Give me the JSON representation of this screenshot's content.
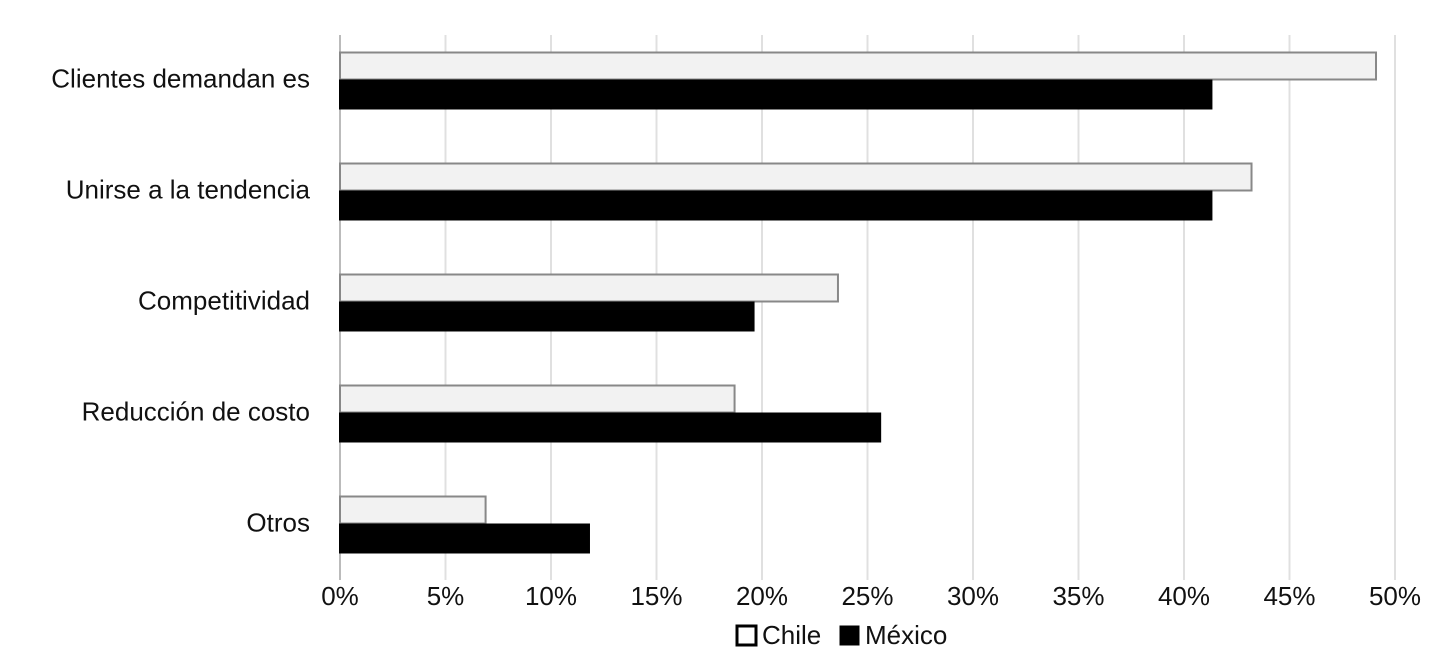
{
  "chart_data": {
    "type": "hbar",
    "categories": [
      "Clientes demandan es",
      "Unirse a la tendencia",
      "Competitividad",
      "Reducción de costo",
      "Otros"
    ],
    "series": [
      {
        "name": "Chile",
        "color": "#f2f2f2",
        "values": [
          49.1,
          43.2,
          23.6,
          18.7,
          6.9
        ]
      },
      {
        "name": "México",
        "color": "#000000",
        "values": [
          41.3,
          41.3,
          19.6,
          25.6,
          11.8
        ]
      }
    ],
    "xlim": [
      0,
      50
    ],
    "xticks": [
      {
        "value": 0,
        "label": "0%"
      },
      {
        "value": 5,
        "label": "5%"
      },
      {
        "value": 10,
        "label": "10%"
      },
      {
        "value": 15,
        "label": "15%"
      },
      {
        "value": 20,
        "label": "20%"
      },
      {
        "value": 25,
        "label": "25%"
      },
      {
        "value": 30,
        "label": "30%"
      },
      {
        "value": 35,
        "label": "35%"
      },
      {
        "value": 40,
        "label": "40%"
      },
      {
        "value": 45,
        "label": "45%"
      },
      {
        "value": 50,
        "label": "50%"
      }
    ],
    "grid": true
  }
}
